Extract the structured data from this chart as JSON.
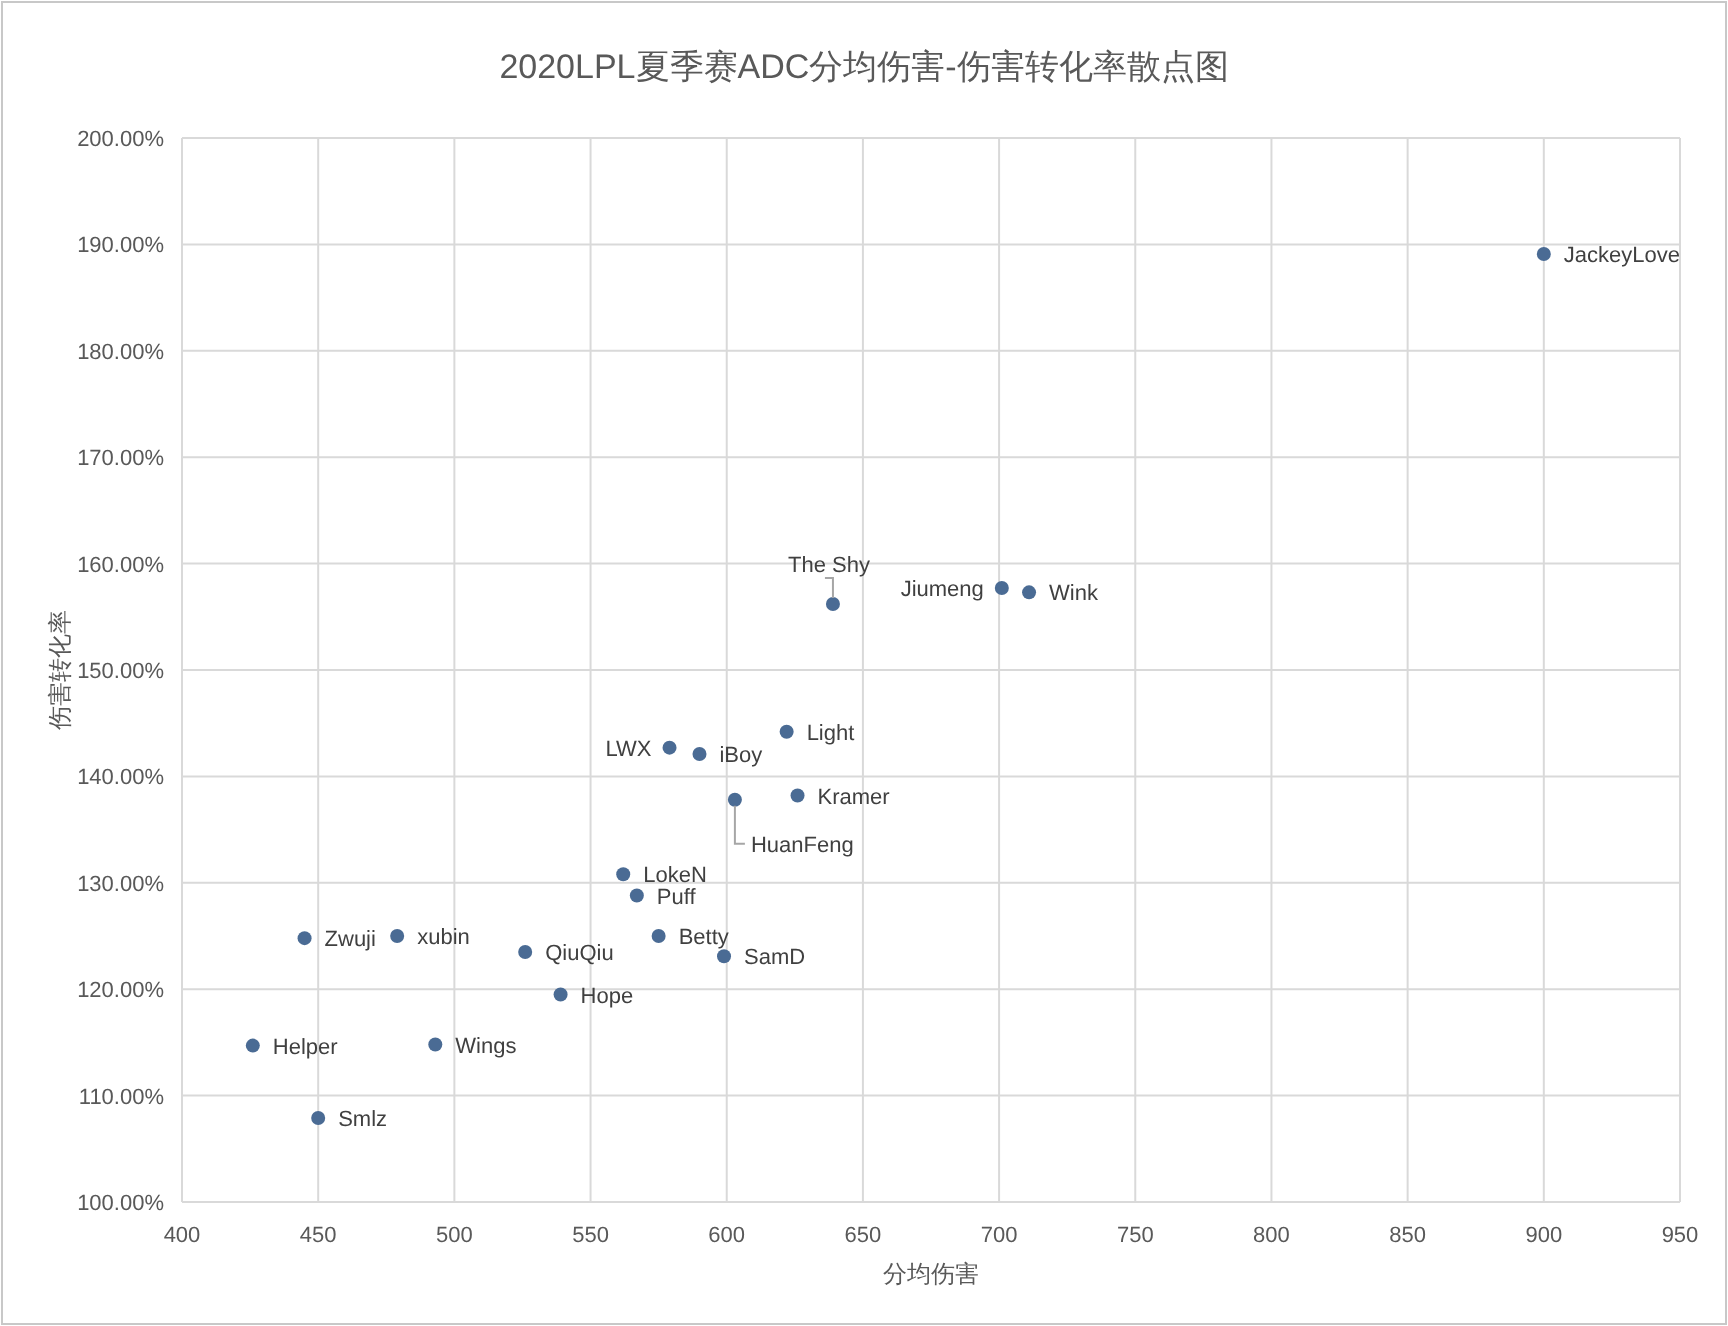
{
  "chart_data": {
    "type": "scatter",
    "title": "2020LPL夏季赛ADC分均伤害-伤害转化率散点图",
    "xlabel": "分均伤害",
    "ylabel": "伤害转化率",
    "series": [
      {
        "color": "#4a6b94",
        "x": [
          900,
          639,
          701,
          711,
          622,
          579,
          590,
          626,
          603,
          562,
          567,
          445,
          479,
          575,
          526,
          599,
          539,
          426,
          493,
          450
        ],
        "values": [
          189.1,
          156.2,
          157.7,
          157.3,
          144.2,
          142.7,
          142.1,
          138.2,
          137.8,
          130.8,
          128.8,
          124.8,
          125.0,
          125.0,
          123.5,
          123.1,
          119.5,
          114.7,
          114.8,
          107.9
        ]
      }
    ],
    "annotations": [
      {
        "text": "JackeyLove",
        "x": 900,
        "y": 189.1
      },
      {
        "text": "The Shy",
        "x": 639,
        "y": 156.2
      },
      {
        "text": "Jiumeng",
        "x": 701,
        "y": 157.7
      },
      {
        "text": "Wink",
        "x": 711,
        "y": 157.3
      },
      {
        "text": "Light",
        "x": 622,
        "y": 144.2
      },
      {
        "text": "LWX",
        "x": 579,
        "y": 142.7
      },
      {
        "text": "iBoy",
        "x": 590,
        "y": 142.1
      },
      {
        "text": "Kramer",
        "x": 626,
        "y": 138.2
      },
      {
        "text": "HuanFeng",
        "x": 603,
        "y": 137.8
      },
      {
        "text": "LokeN",
        "x": 562,
        "y": 130.8
      },
      {
        "text": "Puff",
        "x": 567,
        "y": 128.8
      },
      {
        "text": "Zwuji",
        "x": 445,
        "y": 124.8
      },
      {
        "text": "xubin",
        "x": 479,
        "y": 125.0
      },
      {
        "text": "Betty",
        "x": 575,
        "y": 125.0
      },
      {
        "text": "QiuQiu",
        "x": 526,
        "y": 123.5
      },
      {
        "text": "SamD",
        "x": 599,
        "y": 123.1
      },
      {
        "text": "Hope",
        "x": 539,
        "y": 119.5
      },
      {
        "text": "Helper",
        "x": 426,
        "y": 114.7
      },
      {
        "text": "Wings",
        "x": 493,
        "y": 114.8
      },
      {
        "text": "Smlz",
        "x": 450,
        "y": 107.9
      }
    ],
    "xlim": [
      400,
      950
    ],
    "ylim": [
      100,
      200
    ],
    "xticks": [
      400,
      450,
      500,
      550,
      600,
      650,
      700,
      750,
      800,
      850,
      900,
      950
    ],
    "yticks": [
      {
        "value": 100,
        "label": "100.00%"
      },
      {
        "value": 110,
        "label": "110.00%"
      },
      {
        "value": 120,
        "label": "120.00%"
      },
      {
        "value": 130,
        "label": "130.00%"
      },
      {
        "value": 140,
        "label": "140.00%"
      },
      {
        "value": 150,
        "label": "150.00%"
      },
      {
        "value": 160,
        "label": "160.00%"
      },
      {
        "value": 170,
        "label": "170.00%"
      },
      {
        "value": 180,
        "label": "180.00%"
      },
      {
        "value": 190,
        "label": "190.00%"
      },
      {
        "value": 200,
        "label": "200.00%"
      }
    ],
    "grid": true,
    "marker": "circle"
  }
}
